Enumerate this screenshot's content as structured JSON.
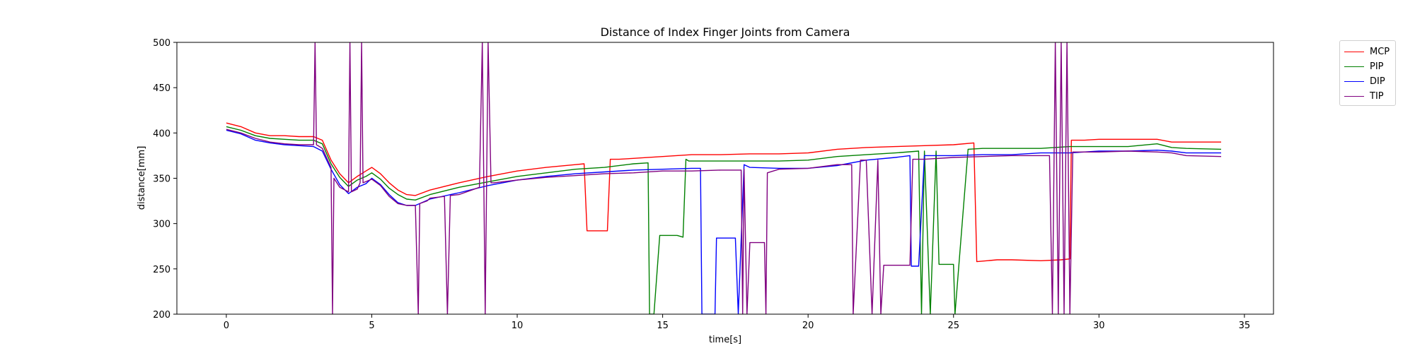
{
  "chart_data": {
    "type": "line",
    "title": "Distance of Index Finger Joints from Camera",
    "xlabel": "time[s]",
    "ylabel": "distance[mm]",
    "xlim": [
      -1.7,
      36
    ],
    "ylim": [
      200,
      500
    ],
    "xticks": [
      0,
      5,
      10,
      15,
      20,
      25,
      30,
      35
    ],
    "yticks": [
      200,
      250,
      300,
      350,
      400,
      450,
      500
    ],
    "grid": false,
    "legend_position": "outside-top-right",
    "series": [
      {
        "name": "MCP",
        "color": "#ff0000",
        "x": [
          0,
          0.5,
          1,
          1.5,
          2,
          2.5,
          3,
          3.3,
          3.6,
          3.9,
          4.2,
          4.5,
          4.8,
          5,
          5.3,
          5.6,
          5.9,
          6.2,
          6.5,
          7,
          8,
          9,
          10,
          11,
          12,
          12.3,
          12.4,
          12.6,
          12.8,
          13,
          13.1,
          13.2,
          13.5,
          14,
          15,
          16,
          17,
          18,
          19,
          20,
          21,
          22,
          23,
          24,
          25,
          25.7,
          25.8,
          26.5,
          27,
          28,
          28.7,
          29,
          29.05,
          29.5,
          30,
          31,
          32,
          32.5,
          33,
          34.2
        ],
        "y": [
          411,
          407,
          400,
          397,
          397,
          396,
          396,
          392,
          370,
          355,
          345,
          352,
          358,
          362,
          355,
          345,
          337,
          332,
          331,
          337,
          345,
          352,
          358,
          362,
          365,
          366,
          292,
          292,
          292,
          292,
          292,
          371,
          371,
          372,
          374,
          376,
          376,
          377,
          377,
          378,
          382,
          384,
          385,
          386,
          387,
          389,
          258,
          260,
          260,
          259,
          260,
          261,
          392,
          392,
          393,
          393,
          393,
          390,
          390,
          390
        ]
      },
      {
        "name": "PIP",
        "color": "#008000",
        "x": [
          0,
          0.5,
          1,
          1.5,
          2,
          2.5,
          3,
          3.3,
          3.6,
          3.9,
          4.2,
          4.5,
          4.8,
          5,
          5.3,
          5.6,
          5.9,
          6.2,
          6.5,
          7,
          8,
          9,
          10,
          11,
          12,
          13,
          14,
          14.5,
          14.55,
          14.7,
          14.9,
          15.1,
          15.3,
          15.5,
          15.7,
          15.8,
          15.9,
          16,
          16.5,
          17,
          18,
          19,
          20,
          21,
          22,
          23,
          23.8,
          23.9,
          24,
          24.2,
          24.4,
          24.5,
          24.8,
          25,
          25.05,
          25.5,
          26,
          27,
          28,
          29,
          30,
          31,
          32,
          32.5,
          33,
          34.2
        ],
        "y": [
          407,
          403,
          397,
          394,
          393,
          392,
          392,
          388,
          366,
          351,
          341,
          348,
          352,
          356,
          349,
          339,
          332,
          327,
          326,
          332,
          340,
          346,
          352,
          356,
          360,
          362,
          366,
          367,
          200,
          200,
          287,
          287,
          287,
          287,
          285,
          371,
          369,
          369,
          369,
          369,
          369,
          369,
          370,
          374,
          376,
          378,
          380,
          200,
          380,
          200,
          380,
          255,
          255,
          255,
          200,
          382,
          383,
          383,
          383,
          385,
          385,
          385,
          388,
          384,
          383,
          382
        ]
      },
      {
        "name": "DIP",
        "color": "#0000ff",
        "x": [
          0,
          0.5,
          1,
          1.5,
          2,
          2.5,
          3,
          3.3,
          3.6,
          3.9,
          4.2,
          4.5,
          4.8,
          5,
          5.3,
          5.6,
          5.9,
          6.2,
          6.5,
          7,
          8,
          9,
          10,
          11,
          12,
          13,
          14,
          15,
          16,
          16.3,
          16.35,
          16.8,
          16.85,
          17,
          17.2,
          17.5,
          17.6,
          17.8,
          18,
          19,
          20,
          21,
          22,
          23,
          23.5,
          23.55,
          23.8,
          24,
          25,
          26,
          27,
          28,
          29,
          30,
          31,
          32,
          32.5,
          33,
          34.2
        ],
        "y": [
          403,
          399,
          392,
          389,
          387,
          386,
          385,
          380,
          360,
          343,
          333,
          340,
          344,
          350,
          343,
          332,
          323,
          320,
          320,
          327,
          334,
          342,
          348,
          352,
          355,
          357,
          359,
          360,
          361,
          361,
          200,
          200,
          284,
          284,
          284,
          284,
          200,
          365,
          362,
          361,
          361,
          364,
          370,
          373,
          375,
          253,
          253,
          375,
          375,
          376,
          376,
          378,
          378,
          380,
          380,
          381,
          380,
          378,
          378
        ]
      },
      {
        "name": "TIP",
        "color": "#800080",
        "x": [
          0,
          0.5,
          1,
          1.5,
          2,
          2.5,
          3,
          3.05,
          3.1,
          3.3,
          3.6,
          3.65,
          3.7,
          3.9,
          4.2,
          4.25,
          4.3,
          4.5,
          4.6,
          4.65,
          4.7,
          5,
          5.3,
          5.6,
          5.9,
          6.2,
          6.5,
          6.6,
          6.65,
          6.9,
          7,
          7.5,
          7.6,
          7.7,
          8,
          8.7,
          8.8,
          8.9,
          9,
          9.1,
          9.2,
          10,
          11,
          12,
          13,
          14,
          15,
          16,
          17,
          17.7,
          17.75,
          17.8,
          17.9,
          18,
          18.5,
          18.55,
          18.6,
          19,
          20,
          21,
          21.5,
          21.55,
          21.8,
          22,
          22.2,
          22.4,
          22.5,
          22.6,
          23,
          23.5,
          23.6,
          24,
          25,
          26,
          27,
          28,
          28.3,
          28.4,
          28.5,
          28.6,
          28.7,
          28.8,
          28.9,
          29,
          29.1,
          30,
          31,
          32,
          32.5,
          33,
          34.2
        ],
        "y": [
          404,
          400,
          394,
          390,
          388,
          387,
          387,
          500,
          387,
          383,
          362,
          200,
          350,
          340,
          335,
          500,
          335,
          338,
          345,
          500,
          345,
          349,
          342,
          330,
          322,
          320,
          320,
          200,
          322,
          325,
          328,
          330,
          200,
          331,
          332,
          340,
          500,
          200,
          500,
          345,
          345,
          348,
          351,
          353,
          355,
          356,
          358,
          358,
          359,
          359,
          200,
          360,
          200,
          279,
          279,
          200,
          356,
          360,
          361,
          365,
          365,
          200,
          370,
          370,
          200,
          370,
          200,
          254,
          254,
          254,
          371,
          371,
          373,
          374,
          375,
          375,
          375,
          200,
          500,
          200,
          500,
          200,
          500,
          200,
          379,
          379,
          380,
          379,
          378,
          375,
          374
        ]
      }
    ]
  }
}
